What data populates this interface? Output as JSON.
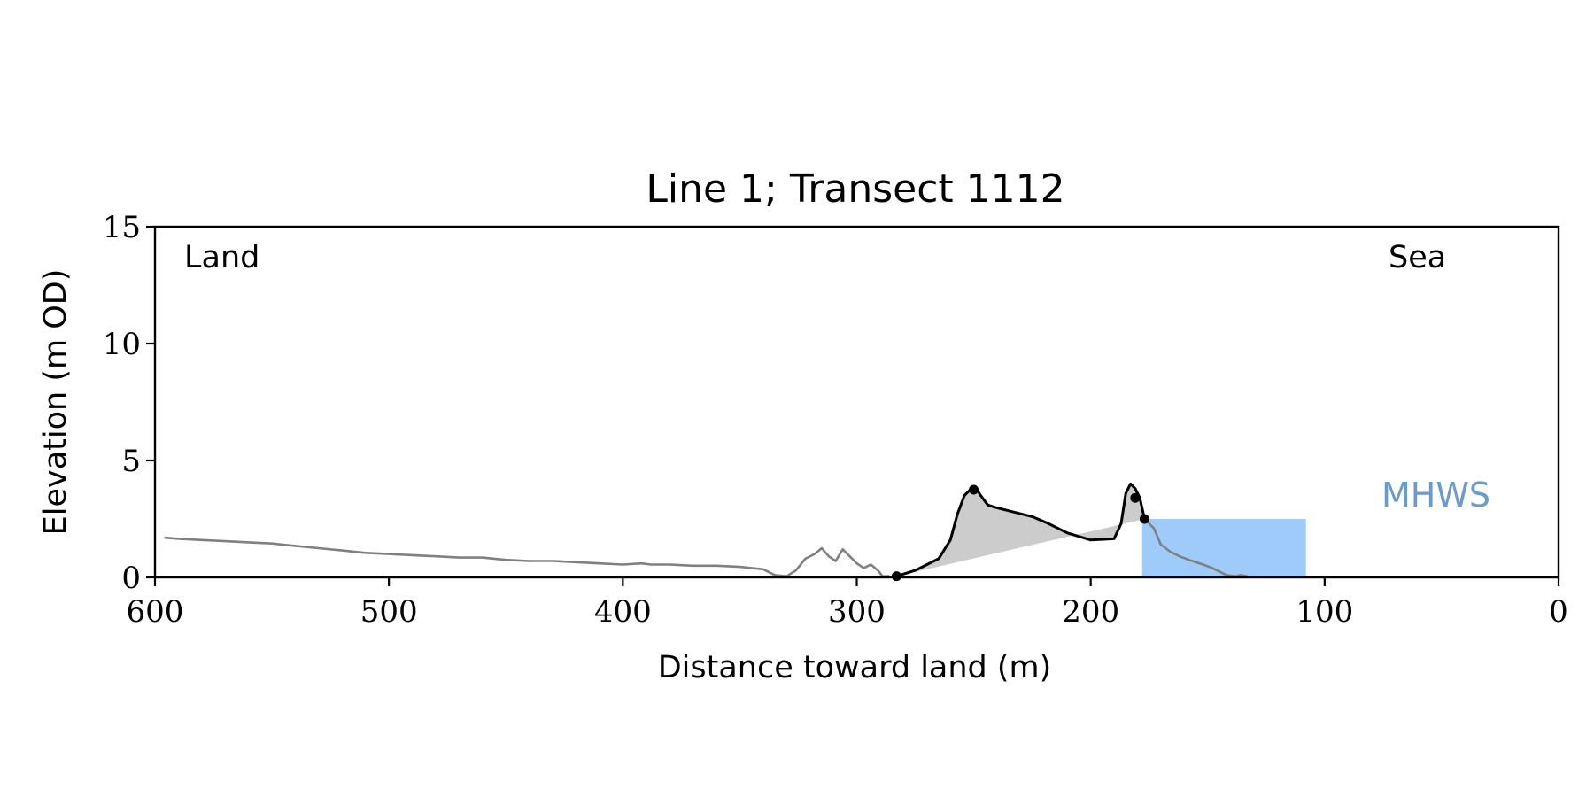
{
  "chart_data": {
    "type": "line",
    "title": "Line 1; Transect 1112",
    "xlabel": "Distance toward land (m)",
    "ylabel": "Elevation (m OD)",
    "xlim": [
      600,
      0
    ],
    "ylim": [
      0,
      15
    ],
    "x_ticks": [
      600,
      500,
      400,
      300,
      200,
      100,
      0
    ],
    "y_ticks": [
      0,
      5,
      10,
      15
    ],
    "x_tick_labels": [
      "600",
      "500",
      "400",
      "300",
      "200",
      "100",
      "0"
    ],
    "y_tick_labels": [
      "0",
      "5",
      "10",
      "15"
    ],
    "grid": false,
    "annotations": {
      "land": "Land",
      "sea": "Sea",
      "mhws": "MHWS"
    },
    "mhws_level": 2.5,
    "mhws_x_range": [
      178,
      108
    ],
    "colors": {
      "profile": "#808080",
      "dune": "#000000",
      "dune_fill": "#cccccc",
      "water": "#9ecbfa",
      "mhws_label": "#6d9bc9"
    },
    "series": [
      {
        "x": [
          596,
          590,
          580,
          570,
          560,
          550,
          540,
          530,
          520,
          510,
          500,
          490,
          480,
          470,
          460,
          455,
          450,
          440,
          430,
          420,
          410,
          400,
          392,
          388,
          380,
          370,
          360,
          350,
          340,
          335,
          330,
          326,
          322,
          318,
          315,
          312,
          309,
          306,
          303,
          300,
          297,
          294,
          291,
          289,
          286
        ],
        "y": [
          1.7,
          1.65,
          1.6,
          1.55,
          1.5,
          1.45,
          1.35,
          1.25,
          1.15,
          1.05,
          1.0,
          0.95,
          0.9,
          0.85,
          0.85,
          0.8,
          0.75,
          0.7,
          0.7,
          0.65,
          0.6,
          0.55,
          0.6,
          0.55,
          0.55,
          0.5,
          0.5,
          0.45,
          0.35,
          0.1,
          0.05,
          0.3,
          0.8,
          1.0,
          1.25,
          0.9,
          0.7,
          1.2,
          0.9,
          0.6,
          0.4,
          0.55,
          0.3,
          0.05,
          0.05
        ]
      },
      {
        "x": [
          283,
          275,
          265,
          260,
          257,
          254,
          251,
          249,
          247,
          244,
          241,
          235,
          225,
          218,
          210,
          200,
          190,
          187,
          185,
          183,
          181,
          179,
          177
        ],
        "y": [
          0.05,
          0.3,
          0.8,
          1.6,
          2.7,
          3.5,
          3.8,
          3.8,
          3.5,
          3.1,
          3.0,
          2.85,
          2.6,
          2.3,
          1.9,
          1.6,
          1.65,
          2.3,
          3.6,
          4.0,
          3.8,
          3.4,
          2.5
        ]
      },
      {
        "x": [
          177,
          173,
          170,
          166,
          162,
          158,
          152,
          148,
          145,
          142,
          138,
          136,
          133
        ],
        "y": [
          2.5,
          2.1,
          1.4,
          1.1,
          0.9,
          0.75,
          0.55,
          0.4,
          0.25,
          0.1,
          0.05,
          0.1,
          0.05
        ]
      }
    ],
    "markers": [
      {
        "x": 283,
        "y": 0.05
      },
      {
        "x": 250,
        "y": 3.75
      },
      {
        "x": 181,
        "y": 3.4
      },
      {
        "x": 177,
        "y": 2.5
      }
    ],
    "shaded_region": {
      "from": {
        "x": 283,
        "y": 0.05
      },
      "to": {
        "x": 177,
        "y": 2.5
      }
    }
  }
}
